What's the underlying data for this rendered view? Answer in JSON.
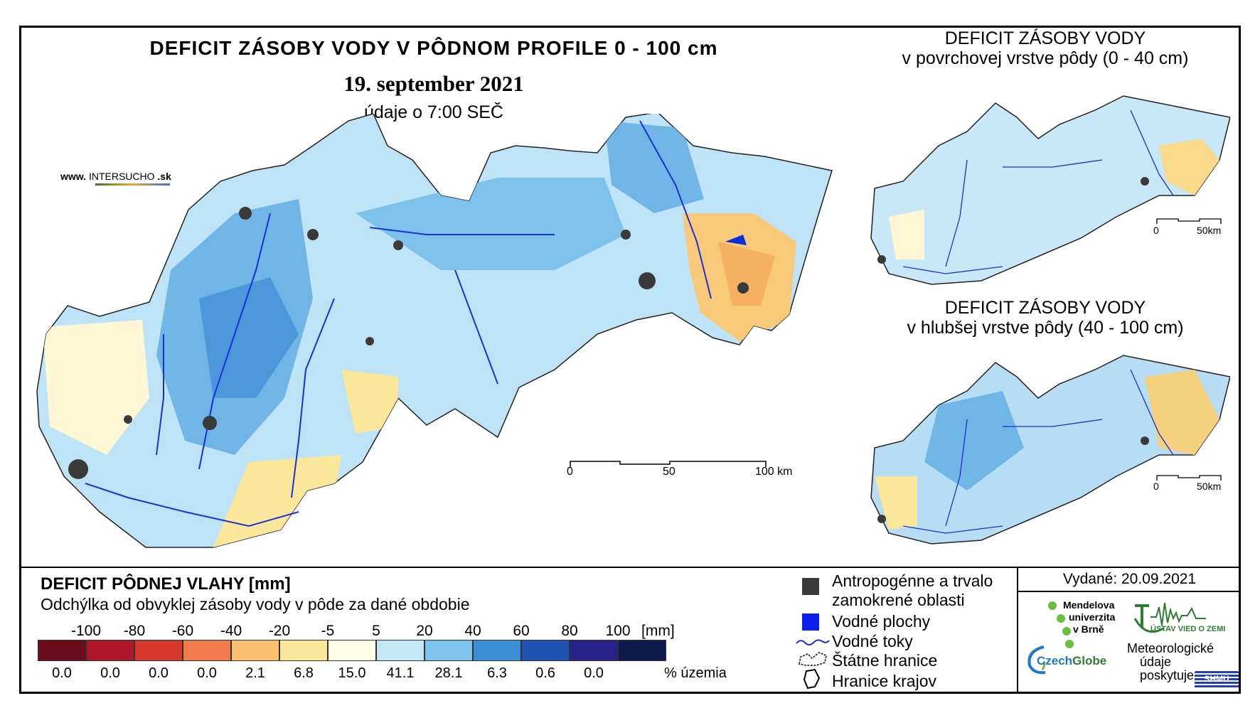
{
  "main_map": {
    "title": "DEFICIT ZÁSOBY VODY V PÔDNOM PROFILE 0 - 100 cm",
    "date": "19. september 2021",
    "time_note": "údaje o 7:00 SEČ",
    "website_prefix": "www.",
    "website_brand": "INTERSUCHO",
    "website_suffix": ".sk",
    "scale": {
      "labels": [
        "0",
        "50",
        "100 km"
      ]
    }
  },
  "inset_top": {
    "title_line1": "DEFICIT ZÁSOBY VODY",
    "title_line2": "v povrchovej vrstve pôdy (0 - 40 cm)",
    "scale": {
      "labels": [
        "0",
        "50km"
      ]
    }
  },
  "inset_bottom": {
    "title_line1": "DEFICIT ZÁSOBY VODY",
    "title_line2": "v hlubšej vrstve pôdy (40 - 100 cm)",
    "scale": {
      "labels": [
        "0",
        "50km"
      ]
    }
  },
  "legend": {
    "title": "DEFICIT PÔDNEJ VLAHY [mm]",
    "subtitle": "Odchýlka od obvyklej zásoby vody v pôde za dané obdobie",
    "ticks": [
      "-100",
      "-80",
      "-60",
      "-40",
      "-20",
      "-5",
      "5",
      "20",
      "40",
      "60",
      "80",
      "100"
    ],
    "unit": "[mm]",
    "classes": [
      {
        "color": "#6b0d1c",
        "percent": "0.0"
      },
      {
        "color": "#b0162a",
        "percent": "0.0"
      },
      {
        "color": "#d8372b",
        "percent": "0.0"
      },
      {
        "color": "#f27a4a",
        "percent": "0.0"
      },
      {
        "color": "#f9bf6e",
        "percent": "2.1"
      },
      {
        "color": "#fbe79a",
        "percent": "6.8"
      },
      {
        "color": "#fdfce4",
        "percent": "15.0"
      },
      {
        "color": "#c5e6f5",
        "percent": "41.1"
      },
      {
        "color": "#7cc2ea",
        "percent": "28.1"
      },
      {
        "color": "#3a8fd6",
        "percent": "6.3"
      },
      {
        "color": "#1f54b5",
        "percent": "0.6"
      },
      {
        "color": "#27228a",
        "percent": "0.0"
      },
      {
        "color": "#0d1b4c",
        "percent": ""
      }
    ],
    "percent_label": "% územia"
  },
  "symbols": {
    "anthropogenic_line1": "Antropogénne a trvalo",
    "anthropogenic_line2": "zamokrené oblasti",
    "water_bodies": "Vodné plochy",
    "streams": "Vodné toky",
    "state_border": "Štátne hranice",
    "region_border": "Hranice krajov"
  },
  "credits": {
    "issued": "Vydané: 20.09.2021",
    "mendel_line1": "Mendelova",
    "mendel_line2": "univerzita",
    "mendel_line3": "v Brně",
    "ustav": "ÚSTAV VIED O ZEMI",
    "czechglobe_a": "Czech",
    "czechglobe_b": "Globe",
    "meteo_line1": "Meteorologické",
    "meteo_line2": "údaje",
    "meteo_line3": "poskytuje:",
    "shmu": "SHMÚ"
  },
  "colors": {
    "map_base": "#bfe3f6",
    "map_mid": "#7cc2ea",
    "map_deep": "#3a8fd6",
    "dry": "#f9c97a",
    "pale": "#fdf7d6",
    "river": "#1a2fd8",
    "urban": "#3a3a3a"
  }
}
